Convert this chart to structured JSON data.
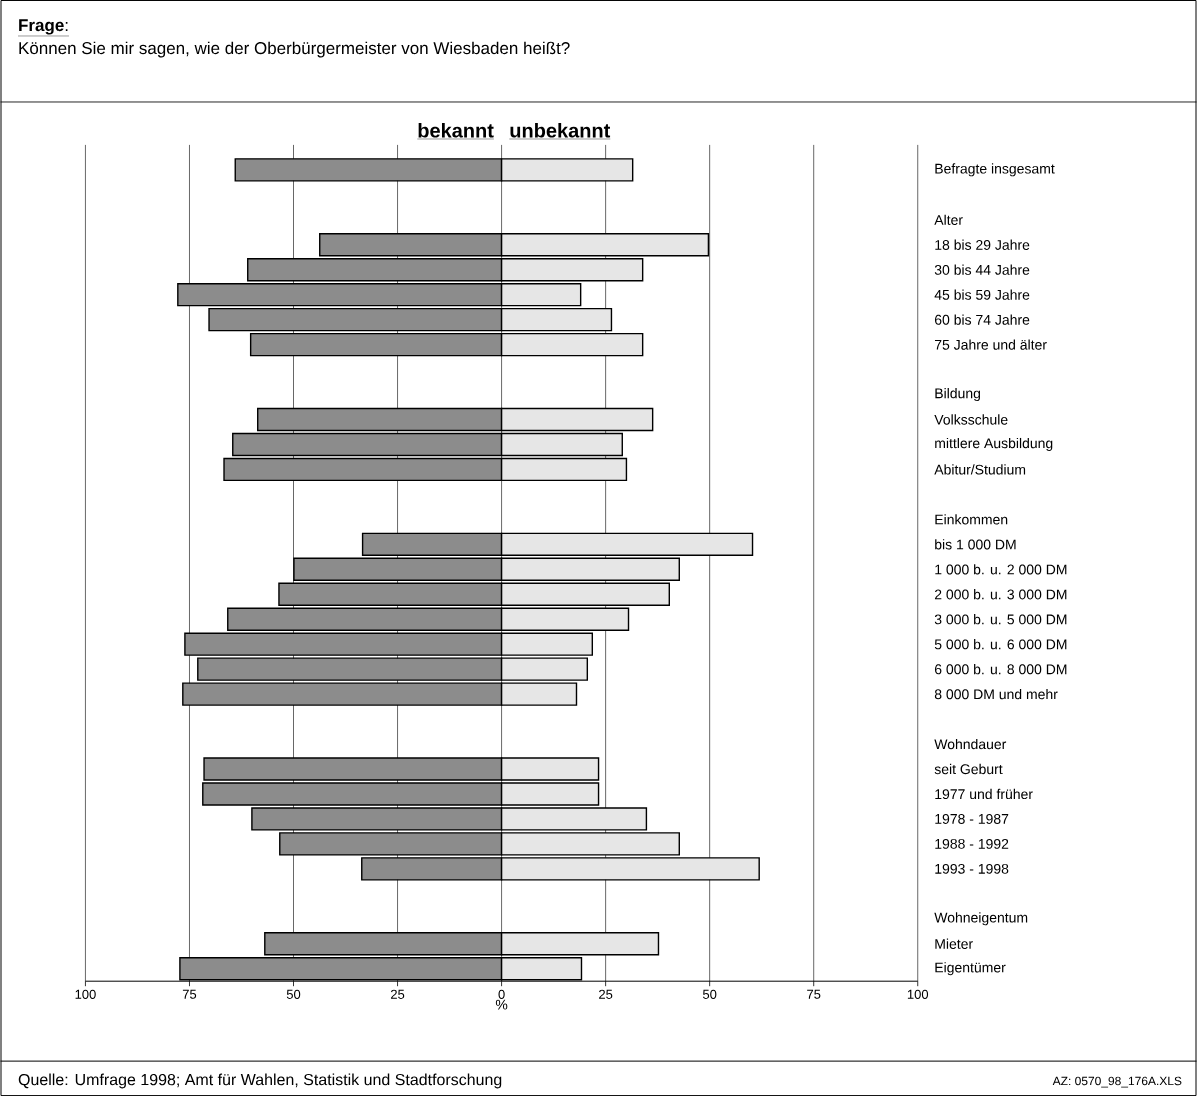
{
  "chart_data": {
    "type": "bar",
    "orientation": "horizontal",
    "stacked": true,
    "title": "**Frage**:",
    "subtitle": "Können Sie mir sagen, wie der Oberbürgermeister von Wiesbaden heißt?",
    "xlabel": "%",
    "categories": [
      "Befragte insgesamt",
      null,
      "Alter",
      "18 bis 29 Jahre",
      "30 bis 44 Jahre",
      "45 bis 59 Jahre",
      "60 bis 74 Jahre",
      "75 Jahre und älter",
      null,
      "Bildung",
      "Volksschule",
      "mittlere Ausbildung",
      "Abitur/Studium",
      null,
      "Einkommen",
      "bis 1 000 DM",
      "1 000 b. u. 2 000 DM",
      "2 000 b. u. 3 000 DM",
      "3 000 b. u. 5 000 DM",
      "5 000 b. u. 6 000 DM",
      "6 000 b. u. 8 000 DM",
      "8 000 DM und mehr",
      null,
      "Wohndauer",
      "seit Geburt",
      "1977 und früher",
      "1978 - 1987",
      "1988 - 1992",
      "1993 - 1998",
      null,
      "Wohneigentum",
      "Mieter",
      "Eigentümer"
    ],
    "series": [
      {
        "name": "bekannt",
        "color": "#8c8c8c",
        "values": [
          -64,
          null,
          null,
          -43.7,
          -61,
          -77.8,
          -70.3,
          -60.3,
          null,
          null,
          -58.6,
          -64.6,
          -66.7,
          null,
          null,
          -33.4,
          -49.9,
          -53.5,
          -65.8,
          -76.1,
          -73,
          -76.6,
          null,
          null,
          -71.5,
          -71.8,
          -60,
          -53.3,
          -33.6,
          null,
          null,
          -56.9,
          -77.3
        ]
      },
      {
        "name": "unbekannt",
        "color": "#e6e6e6",
        "values": [
          31.5,
          null,
          null,
          49.7,
          33.9,
          19,
          26.4,
          33.9,
          null,
          null,
          36.3,
          29,
          30,
          null,
          null,
          60.3,
          42.7,
          40.3,
          30.5,
          21.8,
          20.6,
          18,
          null,
          null,
          23.3,
          23.3,
          34.8,
          42.7,
          61.9,
          null,
          null,
          37.7,
          19.2
        ]
      }
    ],
    "xlim": [
      -100,
      100
    ],
    "xticks": [
      {
        "value": -100,
        "label": "100"
      },
      {
        "value": -75,
        "label": "75"
      },
      {
        "value": -50,
        "label": "50"
      },
      {
        "value": -25,
        "label": "25"
      },
      0,
      25,
      50,
      75,
      100
    ],
    "grid": "x",
    "annotations": [
      "Quelle: Umfrage 1998; Amt für Wahlen, Statistik und Stadtforschung",
      "AZ: 0570_98_176A.XLS"
    ]
  }
}
